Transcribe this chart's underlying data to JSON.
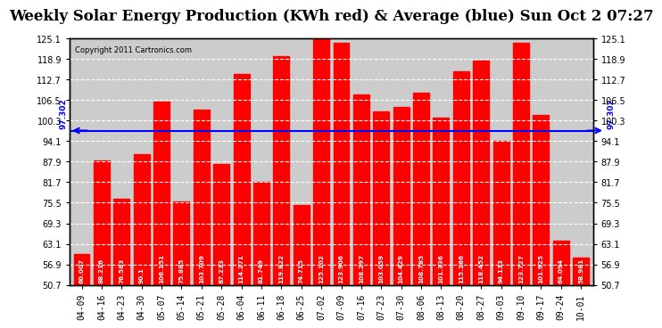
{
  "title": "Weekly Solar Energy Production (KWh red) & Average (blue) Sun Oct 2 07:27",
  "copyright": "Copyright 2011 Cartronics.com",
  "categories": [
    "04-09",
    "04-16",
    "04-23",
    "04-30",
    "05-07",
    "05-14",
    "05-21",
    "05-28",
    "06-04",
    "06-11",
    "06-18",
    "06-25",
    "07-02",
    "07-09",
    "07-16",
    "07-23",
    "07-30",
    "08-06",
    "08-13",
    "08-20",
    "08-27",
    "09-03",
    "09-10",
    "09-17",
    "09-24",
    "10-01"
  ],
  "values": [
    60.007,
    88.216,
    76.583,
    90.1,
    106.151,
    75.885,
    103.709,
    87.233,
    114.271,
    81.749,
    119.822,
    74.715,
    125.102,
    123.906,
    108.297,
    103.059,
    104.429,
    108.785,
    101.336,
    115.186,
    118.452,
    94.133,
    123.727,
    101.925,
    64.094,
    58.981
  ],
  "average": 97.302,
  "bar_color": "#ff0000",
  "avg_line_color": "#0000ff",
  "background_color": "#ffffff",
  "plot_bg_color": "#cccccc",
  "yticks": [
    50.7,
    56.9,
    63.1,
    69.3,
    75.5,
    81.7,
    87.9,
    94.1,
    100.3,
    106.5,
    112.7,
    118.9,
    125.1
  ],
  "ylim_min": 50.7,
  "ylim_max": 125.1,
  "title_fontsize": 12,
  "avg_label": "97.302",
  "bar_label_fontsize": 5.2,
  "tick_fontsize": 7.0
}
